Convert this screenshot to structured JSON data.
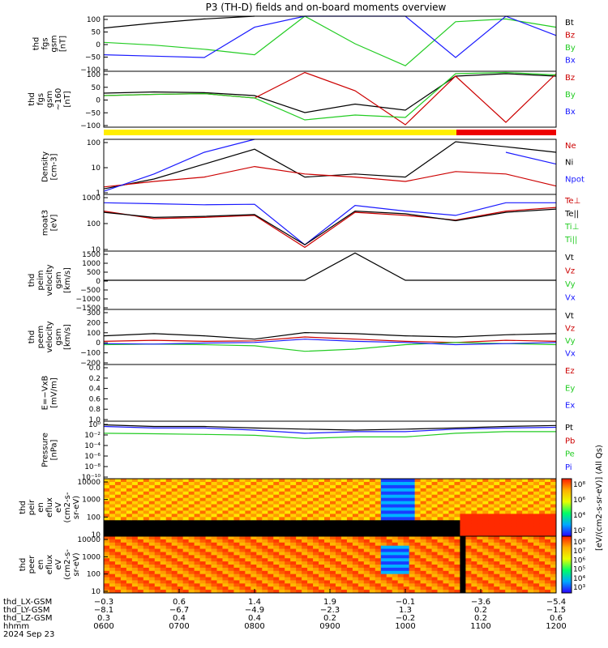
{
  "title": "P3 (TH-D) fields and on-board moments overview",
  "colors": {
    "black": "#000000",
    "red": "#cc0000",
    "green": "#22cc22",
    "blue": "#1a1aff",
    "yellow": "#ffee00",
    "frame": "#000000"
  },
  "chart_data": [
    {
      "type": "line",
      "ylabel": [
        "thd",
        "fgs",
        "gsm",
        "[nT]"
      ],
      "yticks": [
        "100",
        "50",
        "0",
        "−50",
        "−100"
      ],
      "ylim": [
        -100,
        100
      ],
      "legend": [
        {
          "name": "Bt",
          "color": "#000000"
        },
        {
          "name": "Bz",
          "color": "#cc0000"
        },
        {
          "name": "By",
          "color": "#22cc22"
        },
        {
          "name": "Bx",
          "color": "#1a1aff"
        }
      ],
      "x": [
        "0600",
        "0700",
        "0800",
        "0900",
        "0945",
        "1000",
        "1030",
        "1100",
        "1130",
        "1200"
      ],
      "series": [
        {
          "name": "Bt",
          "color": "#000000",
          "values": [
            57,
            75,
            90,
            100,
            null,
            null,
            null,
            null,
            null,
            null
          ]
        },
        {
          "name": "By",
          "color": "#22cc22",
          "values": [
            5,
            -5,
            -20,
            -40,
            100,
            0,
            -80,
            80,
            90,
            60
          ]
        },
        {
          "name": "Bx",
          "color": "#1a1aff",
          "values": [
            -40,
            -45,
            -50,
            60,
            100,
            100,
            100,
            -50,
            100,
            30
          ]
        }
      ]
    },
    {
      "type": "line",
      "ylabel": [
        "thd",
        "fgs",
        "gsm",
        "~160",
        "[nT]"
      ],
      "yticks": [
        "100",
        "50",
        "0",
        "−50",
        "−100"
      ],
      "ylim": [
        -130,
        100
      ],
      "legend": [
        {
          "name": "Bz",
          "color": "#cc0000"
        },
        {
          "name": "By",
          "color": "#22cc22"
        },
        {
          "name": "Bx",
          "color": "#1a1aff"
        }
      ],
      "x": [
        "0600",
        "0700",
        "0800",
        "0900",
        "0945",
        "1000",
        "1030",
        "1100",
        "1130",
        "1200"
      ],
      "series": [
        {
          "name": "Bt",
          "color": "#000000",
          "values": [
            10,
            15,
            12,
            0,
            -70,
            -35,
            -60,
            80,
            90,
            80
          ]
        },
        {
          "name": "Bz",
          "color": "#cc0000",
          "values": [
            0,
            5,
            8,
            -10,
            95,
            20,
            -120,
            80,
            -110,
            90
          ]
        },
        {
          "name": "By",
          "color": "#22cc22",
          "values": [
            0,
            5,
            8,
            -10,
            -100,
            -80,
            -90,
            90,
            95,
            85
          ]
        }
      ]
    },
    {
      "type": "line",
      "ylabel": [
        "Density",
        "[cm-3]"
      ],
      "yticks": [
        "100",
        "10",
        "1"
      ],
      "ylim": [
        0.6,
        100
      ],
      "scale": "log",
      "legend": [
        {
          "name": "Ne",
          "color": "#cc0000"
        },
        {
          "name": "Ni",
          "color": "#000000"
        },
        {
          "name": "Npot",
          "color": "#1a1aff"
        }
      ],
      "x": [
        "0600",
        "0700",
        "0800",
        "0900",
        "0945",
        "1000",
        "1030",
        "1100",
        "1130",
        "1200"
      ],
      "series": [
        {
          "name": "Ni",
          "color": "#000000",
          "values": [
            1.0,
            2.5,
            10,
            40,
            3,
            4,
            3,
            80,
            50,
            30
          ]
        },
        {
          "name": "Ne",
          "color": "#cc0000",
          "values": [
            1.2,
            2,
            3,
            8,
            4,
            3,
            2,
            5,
            4,
            1.3
          ]
        },
        {
          "name": "Npot",
          "color": "#1a1aff",
          "values": [
            0.8,
            4,
            30,
            100,
            null,
            null,
            null,
            null,
            30,
            10
          ]
        }
      ]
    },
    {
      "type": "line",
      "ylabel": [
        "moat3",
        "[eV]"
      ],
      "yticks": [
        "1000",
        "100",
        "10"
      ],
      "ylim": [
        10,
        5000
      ],
      "scale": "log",
      "legend": [
        {
          "name": "Te⊥",
          "color": "#cc0000"
        },
        {
          "name": "Te||",
          "color": "#000000"
        },
        {
          "name": "Ti⊥",
          "color": "#22cc22"
        },
        {
          "name": "Ti||",
          "color": "#22cc22"
        }
      ],
      "x": [
        "0600",
        "0700",
        "0800",
        "0900",
        "0945",
        "1000",
        "1030",
        "1100",
        "1130",
        "1200"
      ],
      "series": [
        {
          "name": "Ti⊥",
          "color": "#1a1aff",
          "values": [
            2000,
            1800,
            1600,
            1700,
            20,
            1500,
            800,
            500,
            2000,
            2000
          ]
        },
        {
          "name": "Te⊥",
          "color": "#cc0000",
          "values": [
            800,
            350,
            400,
            500,
            15,
            700,
            500,
            300,
            800,
            1200
          ]
        },
        {
          "name": "Te||",
          "color": "#000000",
          "values": [
            700,
            400,
            450,
            550,
            20,
            800,
            600,
            280,
            700,
            1000
          ]
        }
      ]
    },
    {
      "type": "line",
      "ylabel": [
        "thd",
        "peim",
        "velocity",
        "gsm",
        "[km/s]"
      ],
      "yticks": [
        "1500",
        "1000",
        "500",
        "0",
        "−500",
        "−1000",
        "−1500"
      ],
      "ylim": [
        -1600,
        1600
      ],
      "legend": [
        {
          "name": "Vt",
          "color": "#000000"
        },
        {
          "name": "Vz",
          "color": "#cc0000"
        },
        {
          "name": "Vy",
          "color": "#22cc22"
        },
        {
          "name": "Vx",
          "color": "#1a1aff"
        }
      ],
      "x": [
        "0600",
        "0700",
        "0800",
        "0900",
        "0945",
        "1000",
        "1030",
        "1100",
        "1130",
        "1200"
      ],
      "series": [
        {
          "name": "Vt",
          "color": "#000000",
          "values": [
            0,
            0,
            0,
            0,
            0,
            1500,
            0,
            0,
            0,
            0
          ]
        }
      ]
    },
    {
      "type": "line",
      "ylabel": [
        "thd",
        "peem",
        "velocity",
        "gsm",
        "[km/s]"
      ],
      "yticks": [
        "300",
        "200",
        "100",
        "0",
        "−100",
        "−200"
      ],
      "ylim": [
        -200,
        300
      ],
      "legend": [
        {
          "name": "Vt",
          "color": "#000000"
        },
        {
          "name": "Vz",
          "color": "#cc0000"
        },
        {
          "name": "Vy",
          "color": "#22cc22"
        },
        {
          "name": "Vx",
          "color": "#1a1aff"
        }
      ],
      "x": [
        "0600",
        "0700",
        "0800",
        "0900",
        "0945",
        "1000",
        "1030",
        "1100",
        "1130",
        "1200"
      ],
      "series": [
        {
          "name": "Vt",
          "color": "#000000",
          "values": [
            60,
            80,
            60,
            30,
            90,
            80,
            60,
            50,
            70,
            80
          ]
        },
        {
          "name": "Vz",
          "color": "#cc0000",
          "values": [
            10,
            20,
            10,
            15,
            50,
            30,
            10,
            0,
            20,
            10
          ]
        },
        {
          "name": "Vy",
          "color": "#22cc22",
          "values": [
            -20,
            -15,
            -20,
            -30,
            -80,
            -60,
            -20,
            0,
            -10,
            -20
          ]
        },
        {
          "name": "Vx",
          "color": "#1a1aff",
          "values": [
            -10,
            -15,
            -5,
            0,
            30,
            10,
            0,
            -20,
            -10,
            0
          ]
        }
      ]
    },
    {
      "type": "line",
      "ylabel": [
        "E=−VxB",
        "[mV/m]"
      ],
      "yticks": [
        "0.0",
        "0.2",
        "0.4",
        "0.6",
        "0.8",
        "1.0"
      ],
      "ylim": [
        0,
        1
      ],
      "legend": [
        {
          "name": "Ez",
          "color": "#cc0000"
        },
        {
          "name": "Ey",
          "color": "#22cc22"
        },
        {
          "name": "Ex",
          "color": "#1a1aff"
        }
      ],
      "x": [],
      "series": []
    },
    {
      "type": "line",
      "ylabel": [
        "Pressure",
        "[nPa]"
      ],
      "yticks": [
        "10⁰",
        "10⁻²",
        "10⁻⁴",
        "10⁻⁶",
        "10⁻⁸",
        "10⁻¹⁰"
      ],
      "ylim": [
        1e-10,
        10
      ],
      "scale": "log",
      "legend": [
        {
          "name": "Pt",
          "color": "#000000"
        },
        {
          "name": "Pb",
          "color": "#cc0000"
        },
        {
          "name": "Pe",
          "color": "#22cc22"
        },
        {
          "name": "Pi",
          "color": "#1a1aff"
        }
      ],
      "x": [
        "0600",
        "0700",
        "0800",
        "0900",
        "0945",
        "1000",
        "1030",
        "1100",
        "1130",
        "1200"
      ],
      "series": [
        {
          "name": "Pt",
          "color": "#000000",
          "values": [
            2,
            1,
            1,
            0.5,
            0.3,
            0.2,
            0.3,
            0.5,
            1,
            1.5
          ]
        },
        {
          "name": "Pi",
          "color": "#1a1aff",
          "values": [
            1,
            0.5,
            0.5,
            0.2,
            0.05,
            0.1,
            0.1,
            0.3,
            0.5,
            0.7
          ]
        },
        {
          "name": "Pe",
          "color": "#22cc22",
          "values": [
            0.05,
            0.04,
            0.03,
            0.02,
            0.005,
            0.01,
            0.01,
            0.05,
            0.1,
            0.1
          ]
        }
      ]
    },
    {
      "type": "heatmap",
      "ylabel": [
        "thd",
        "peir",
        "en",
        "eflux",
        "eV",
        "(cm2-s-",
        "sr-eV)"
      ],
      "yticks": [
        "10000",
        "1000",
        "100",
        "10"
      ],
      "ylim": [
        5,
        20000
      ],
      "scale": "log",
      "colorbar_ticks": [
        "10⁸",
        "10⁶",
        "10⁴",
        "10²"
      ]
    },
    {
      "type": "heatmap",
      "ylabel": [
        "thd",
        "peer",
        "en",
        "eflux",
        "eV",
        "(cm2-s-",
        "sr-eV)"
      ],
      "yticks": [
        "10000",
        "1000",
        "100",
        "10"
      ],
      "ylim": [
        5,
        20000
      ],
      "scale": "log",
      "colorbar_ticks": [
        "10⁸",
        "10⁷",
        "10⁶",
        "10⁵",
        "10⁴",
        "10³"
      ]
    }
  ],
  "colorbar_label": "[eV/(cm2-s-sr-eV)] (All Qs)",
  "xaxis": {
    "rows": [
      {
        "label": "thd_LX-GSM",
        "values": [
          "−0.3",
          "0.6",
          "1.4",
          "1.9",
          "−0.1",
          "−3.6",
          "−5.4"
        ]
      },
      {
        "label": "thd_LY-GSM",
        "values": [
          "−8.1",
          "−6.7",
          "−4.9",
          "−2.3",
          "1.3",
          "0.2",
          "−1.5"
        ]
      },
      {
        "label": "thd_LZ-GSM",
        "values": [
          "0.3",
          "0.4",
          "0.4",
          "0.2",
          "−0.2",
          "0.2",
          "0.6"
        ]
      },
      {
        "label": "hhmm",
        "values": [
          "0600",
          "0700",
          "0800",
          "0900",
          "1000",
          "1100",
          "1200"
        ]
      }
    ],
    "date": "2024 Sep 23"
  }
}
